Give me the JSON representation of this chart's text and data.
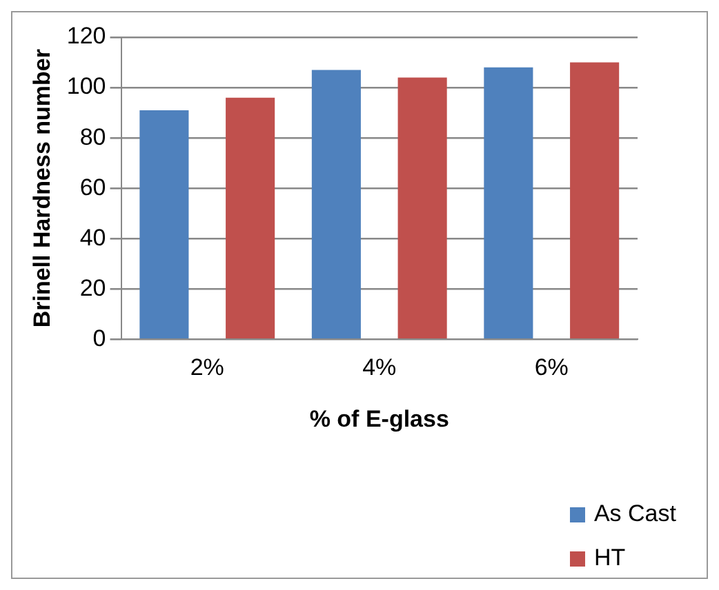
{
  "chart_data": {
    "type": "bar",
    "xlabel": "% of E-glass",
    "ylabel": "Brinell Hardness number",
    "categories": [
      "2%",
      "4%",
      "6%"
    ],
    "series": [
      {
        "name": "As Cast",
        "color": "#4f81bd",
        "values": [
          91,
          107,
          108
        ]
      },
      {
        "name": "HT",
        "color": "#c0504d",
        "values": [
          96,
          104,
          110
        ]
      }
    ],
    "ylim": [
      0,
      120
    ],
    "yticks": [
      0,
      20,
      40,
      60,
      80,
      100,
      120
    ],
    "grid": "y",
    "legend": "bottom right"
  }
}
